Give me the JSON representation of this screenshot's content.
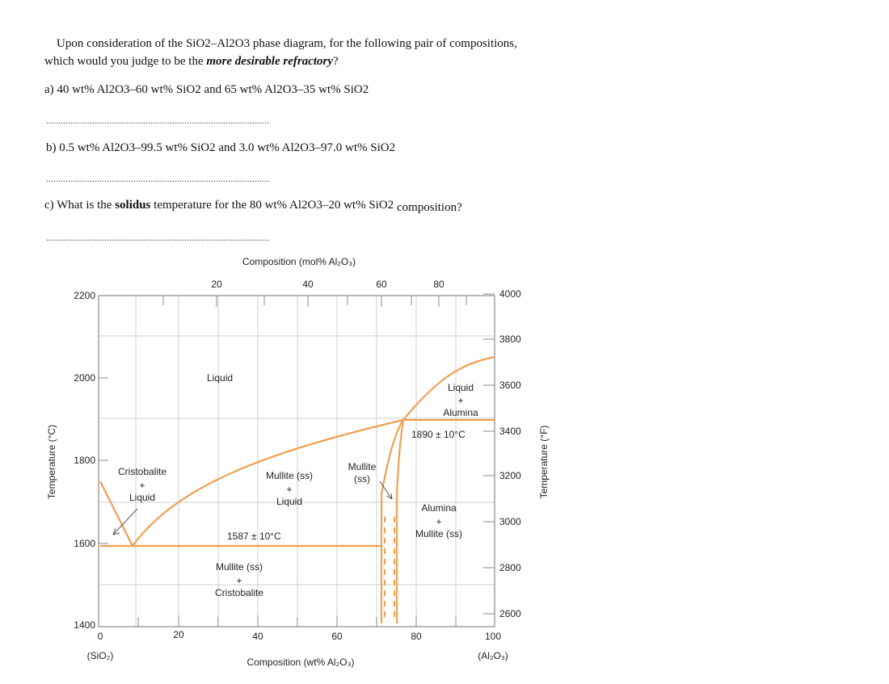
{
  "question": {
    "intro_line1": "Upon consideration of the SiO2–Al2O3 phase diagram, for the following pair of compositions,",
    "intro_line2_prefix": "which would you judge to be the ",
    "intro_line2_emph": "more desirable refractory",
    "intro_line2_suffix": "?",
    "a": "a) 40 wt% Al2O3–60 wt% SiO2 and 65 wt% Al2O3–35 wt% SiO2",
    "b": "b) 0.5 wt% Al2O3–99.5 wt% SiO2 and 3.0 wt% Al2O3–97.0 wt% SiO2",
    "c_prefix": "c) What is the ",
    "c_bold": "solidus",
    "c_mid": " temperature for the 80 wt% Al2O3–20 wt% SiO2",
    "c_suffix": " composition?",
    "answer_blank": "............................................................................................"
  },
  "chart_data": {
    "type": "phase-diagram",
    "top_axis_title": "Composition (mol% Al₂O₃)",
    "top_ticks": [
      "20",
      "40",
      "60",
      "80"
    ],
    "bottom_axis_title": "Composition (wt% Al₂O₃)",
    "bottom_ticks": [
      "0",
      "20",
      "40",
      "60",
      "80",
      "100"
    ],
    "bottom_left_label": "(SiO₂)",
    "bottom_right_label": "(Al₂O₃)",
    "left_axis_title": "Temperature (°C)",
    "left_ticks": [
      "2200",
      "2000",
      "1800",
      "1600",
      "1400"
    ],
    "right_axis_title": "Temperature (°F)",
    "right_ticks": [
      "4000",
      "3800",
      "3600",
      "3400",
      "3200",
      "3000",
      "2800",
      "2600"
    ],
    "xlim": [
      0,
      100
    ],
    "ylim": [
      1400,
      2200
    ],
    "phase_labels": {
      "liquid": "Liquid",
      "liquid_alumina_1": "Liquid",
      "liquid_alumina_2": "+",
      "liquid_alumina_3": "Alumina",
      "eutectic_high": "1890 ± 10°C",
      "cristobalite_liquid_1": "Cristobalite",
      "cristobalite_liquid_2": "+",
      "cristobalite_liquid_3": "Liquid",
      "mullite_liquid_1": "Mullite (ss)",
      "mullite_liquid_2": "+",
      "mullite_liquid_3": "Liquid",
      "mullite_ss_1": "Mullite",
      "mullite_ss_2": "(ss)",
      "alumina_mullite_1": "Alumina",
      "alumina_mullite_2": "+",
      "alumina_mullite_3": "Mullite (ss)",
      "eutectic_low": "1587 ± 10°C",
      "mullite_cristobalite_1": "Mullite (ss)",
      "mullite_cristobalite_2": "+",
      "mullite_cristobalite_3": "Cristobalite"
    },
    "colors": {
      "phase_line": "#f0a050",
      "frame": "#888888",
      "grid": "#cccccc"
    }
  }
}
